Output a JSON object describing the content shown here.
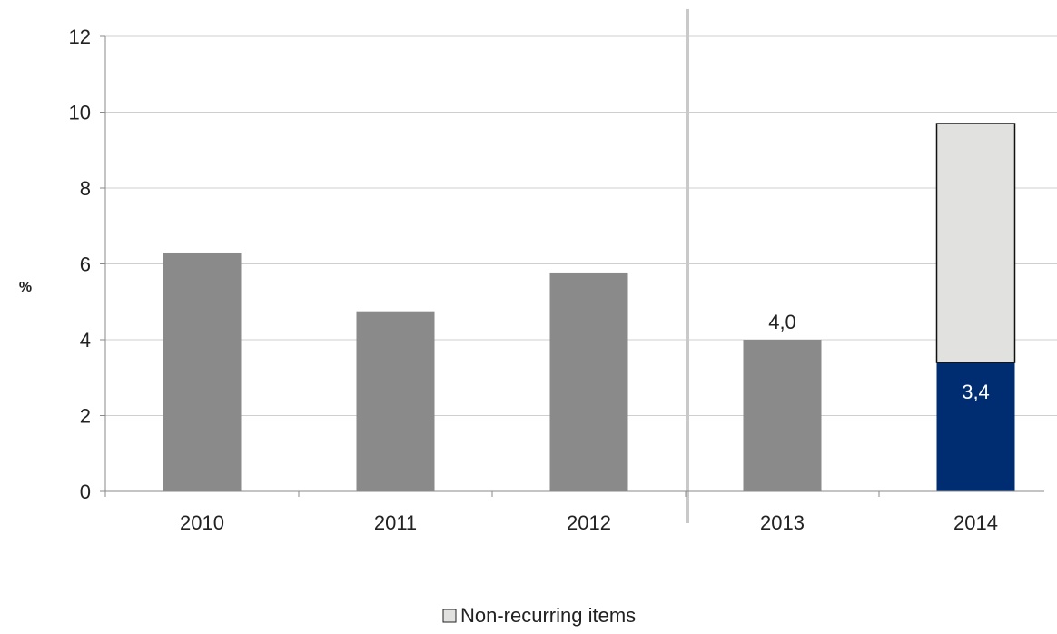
{
  "chart_data": {
    "type": "bar",
    "stacked": true,
    "categories": [
      "2010",
      "2011",
      "2012",
      "2013",
      "2014"
    ],
    "ylabel": "%",
    "ylim": [
      0,
      12
    ],
    "yticks": [
      "0",
      "2",
      "4",
      "6",
      "8",
      "10",
      "12"
    ],
    "grid": true,
    "legend_position": "bottom",
    "divider_after_category": "2012",
    "series": [
      {
        "values": [
          6.3,
          4.75,
          5.75,
          4.0,
          3.4
        ],
        "colors": [
          "#8a8a8a",
          "#8a8a8a",
          "#8a8a8a",
          "#8a8a8a",
          "#002d72"
        ],
        "labels": [
          "",
          "",
          "",
          "4,0",
          "3,4"
        ]
      },
      {
        "name": "Non-recurring items",
        "values": [
          0,
          0,
          0,
          0,
          6.3
        ],
        "color": "#e1e1df",
        "border": "#111111"
      }
    ],
    "legend": [
      {
        "label": "Non-recurring items",
        "color": "#e1e1df"
      }
    ]
  },
  "colors": {
    "grid": "#cfcfcf",
    "axis": "#8a8a8a",
    "divider": "#c9c9c9",
    "label_dark": "#222222",
    "label_light": "#ffffff"
  }
}
